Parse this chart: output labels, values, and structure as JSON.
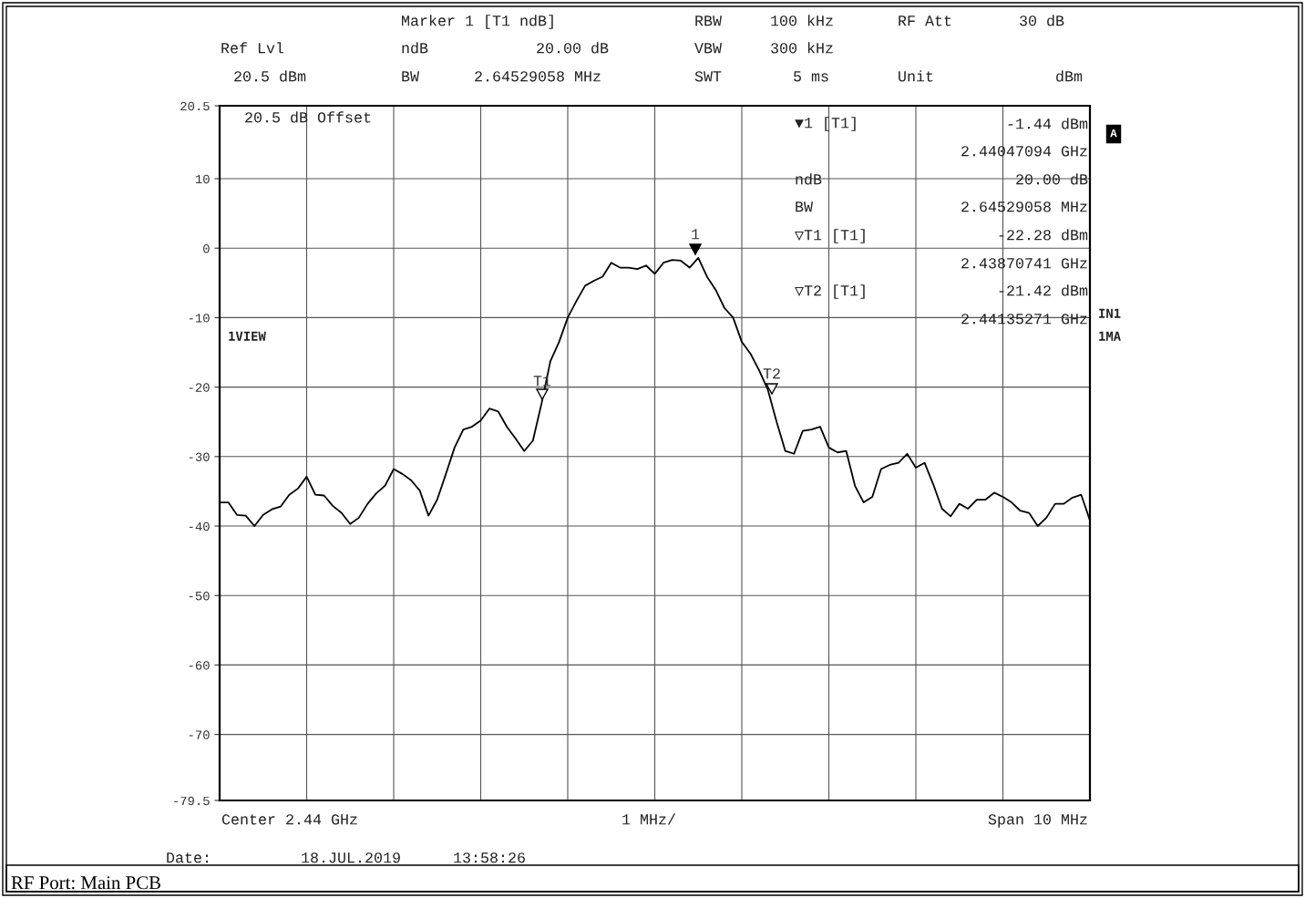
{
  "chart_data": {
    "type": "line",
    "color": "#000000",
    "categories": [
      null,
      null,
      null,
      null,
      null,
      null,
      null,
      null,
      null,
      null,
      null,
      null,
      null,
      null,
      null,
      null,
      null,
      null,
      null,
      null,
      null,
      null,
      null,
      null,
      null,
      null,
      null,
      null,
      null,
      null,
      null,
      null,
      null,
      null,
      null,
      null,
      null,
      null,
      null,
      null,
      null,
      null,
      null,
      null,
      null,
      null,
      null,
      null,
      null,
      null,
      null,
      null,
      null,
      null,
      null,
      null,
      null,
      null,
      null,
      null,
      null,
      null,
      null,
      null,
      null,
      null,
      null,
      null,
      null,
      null,
      null,
      null,
      null,
      null,
      null,
      null,
      null,
      null,
      null,
      null,
      null,
      null,
      null,
      null,
      null,
      null,
      null,
      null,
      null,
      null,
      null,
      null,
      null,
      null,
      null,
      null,
      null,
      null,
      null,
      null,
      null
    ],
    "values": [
      -36.6,
      -36.6,
      -38.4,
      -38.5,
      -40.0,
      -38.4,
      -37.6,
      -37.2,
      -35.5,
      -34.6,
      -32.9,
      -35.5,
      -35.6,
      -37.1,
      -38.1,
      -39.7,
      -38.8,
      -36.8,
      -35.3,
      -34.2,
      -31.8,
      -32.5,
      -33.4,
      -34.9,
      -38.5,
      -36.2,
      -32.5,
      -28.7,
      -26.1,
      -25.7,
      -24.8,
      -23.1,
      -23.5,
      -25.7,
      -27.4,
      -29.2,
      -27.7,
      -22.3,
      -16.3,
      -13.5,
      -10.0,
      -7.6,
      -5.4,
      -4.7,
      -4.1,
      -2.1,
      -2.8,
      -2.8,
      -3.0,
      -2.5,
      -3.7,
      -2.1,
      -1.7,
      -1.8,
      -2.8,
      -1.4,
      -4.1,
      -6.0,
      -8.6,
      -10.0,
      -13.5,
      -15.2,
      -17.6,
      -20.4,
      -25.0,
      -29.2,
      -29.6,
      -26.3,
      -26.1,
      -25.7,
      -28.7,
      -29.4,
      -29.2,
      -34.2,
      -36.6,
      -35.8,
      -31.8,
      -31.2,
      -30.9,
      -29.6,
      -31.6,
      -30.9,
      -34.0,
      -37.5,
      -38.6,
      -36.8,
      -37.5,
      -36.2,
      -36.2,
      -35.2,
      -35.8,
      -36.6,
      -37.8,
      -38.1,
      -40.0,
      -38.8,
      -36.8,
      -36.8,
      -35.9,
      -35.5,
      -39.2
    ],
    "ylim": [
      -79.5,
      20.5
    ],
    "yticks": [
      20.5,
      10,
      0,
      -10,
      -20,
      -30,
      -40,
      -50,
      -60,
      -70,
      -79.5
    ],
    "grid": true,
    "marker": "none",
    "line_style": "solid",
    "annotations": [
      "Marker 1 [T1 ndB]",
      "RBW",
      "100 kHz",
      "RF Att",
      "30 dB",
      "Ref Lvl",
      "ndB",
      "20.00 dB",
      "VBW",
      "300 kHz",
      "20.5 dBm",
      "BW",
      "2.64529058 MHz",
      "SWT",
      "5 ms",
      "Unit",
      "dBm",
      "20.5 dB Offset",
      "1VIEW",
      "A",
      "IN1",
      "1MA",
      "▼1 [T1]",
      "-1.44 dBm",
      "2.44047094 GHz",
      "ndB",
      "20.00 dB",
      "BW",
      "2.64529058 MHz",
      "▽T1 [T1]",
      "-22.28 dBm",
      "2.43870741 GHz",
      "▽T2 [T1]",
      "-21.42 dBm",
      "2.44135271 GHz",
      "Center 2.44 GHz",
      "1 MHz/",
      "Span 10 MHz",
      "Date:",
      "18.JUL.2019",
      "13:58:26",
      "RF Port: Main PCB",
      "1",
      "T1",
      "T2"
    ]
  }
}
